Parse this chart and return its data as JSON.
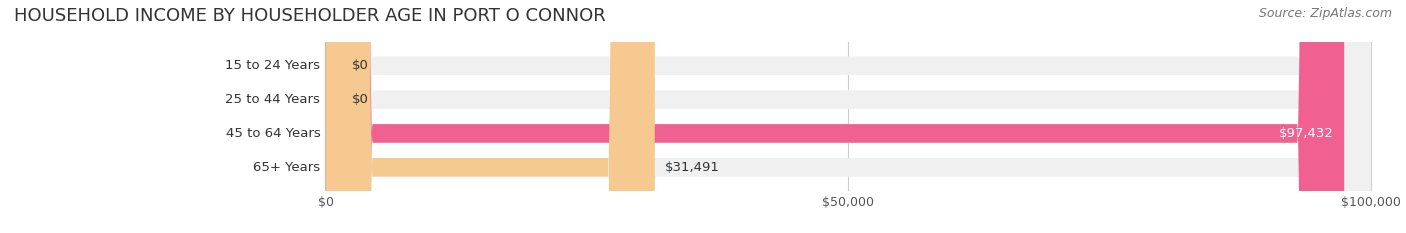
{
  "title": "HOUSEHOLD INCOME BY HOUSEHOLDER AGE IN PORT O CONNOR",
  "source": "Source: ZipAtlas.com",
  "categories": [
    "15 to 24 Years",
    "25 to 44 Years",
    "45 to 64 Years",
    "65+ Years"
  ],
  "values": [
    0,
    0,
    97432,
    31491
  ],
  "bar_colors": [
    "#7ecfdc",
    "#a9a9d4",
    "#f06090",
    "#f5c990"
  ],
  "bar_bg_color": "#f0f0f0",
  "xlim": [
    0,
    100000
  ],
  "xticks": [
    0,
    50000,
    100000
  ],
  "xtick_labels": [
    "$0",
    "$50,000",
    "$100,000"
  ],
  "value_labels": [
    "$0",
    "$0",
    "$97,432",
    "$31,491"
  ],
  "title_fontsize": 13,
  "source_fontsize": 9,
  "label_fontsize": 9.5,
  "tick_fontsize": 9,
  "bar_height": 0.55,
  "background_color": "#ffffff"
}
